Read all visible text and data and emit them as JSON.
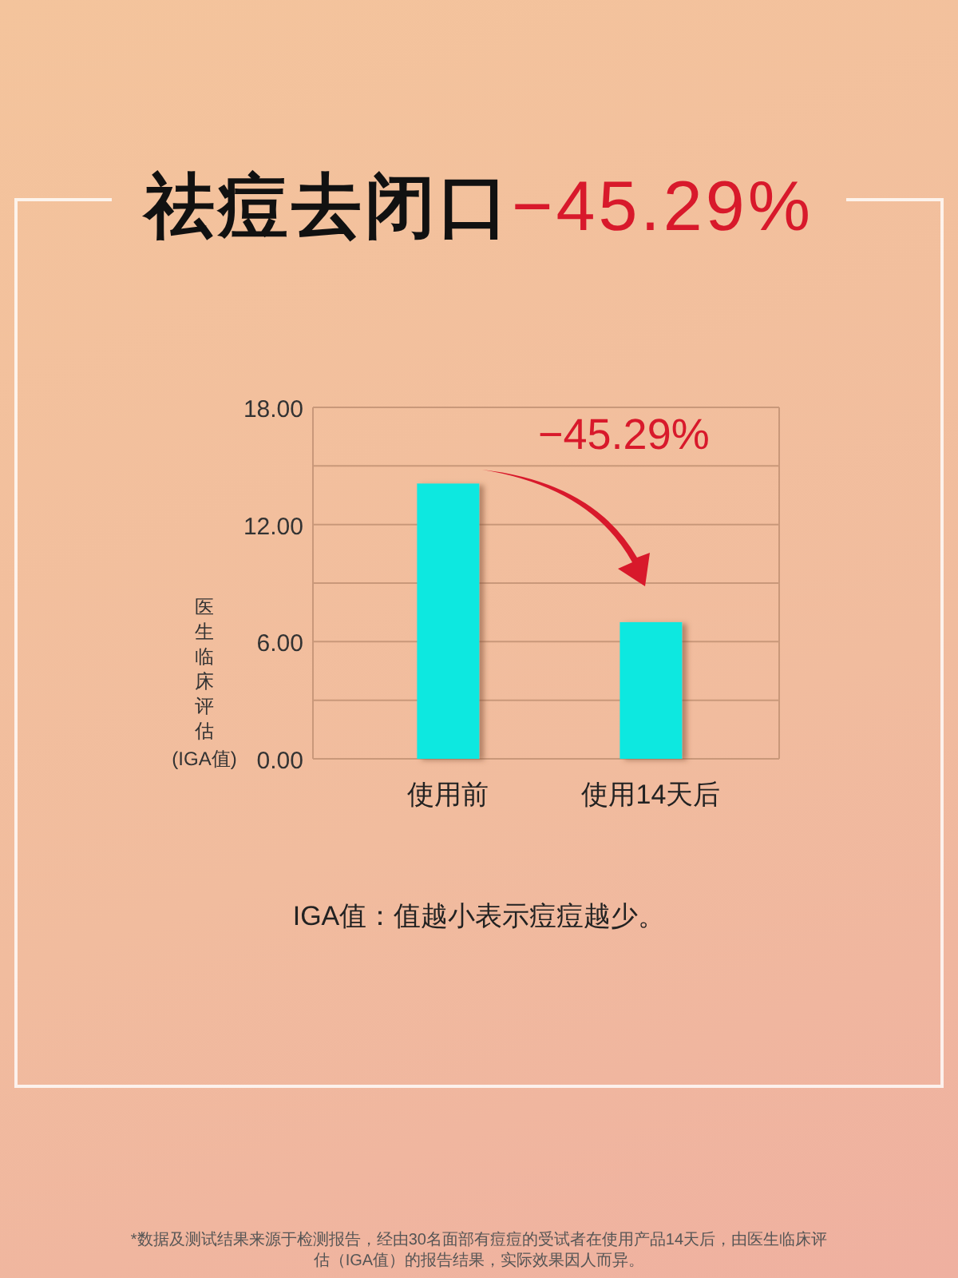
{
  "chart_data": {
    "type": "bar",
    "title": "祛痘去闭口",
    "subtitle": "−45.29%",
    "ylabel": "医生临床评估(IGA值)",
    "categories": [
      "使用前",
      "使用14天后"
    ],
    "values": [
      14.1,
      7.0
    ],
    "color": "#0ce8e0",
    "ylim": [
      0,
      18
    ],
    "yticks": [
      {
        "value": 0,
        "label": "0.00"
      },
      {
        "value": 3,
        "label": null
      },
      {
        "value": 6,
        "label": "6.00"
      },
      {
        "value": 9,
        "label": null
      },
      {
        "value": 12,
        "label": "12.00"
      },
      {
        "value": 15,
        "label": null
      },
      {
        "value": 18,
        "label": "18.00"
      }
    ],
    "grid": "y",
    "annotations": [
      "−45.29%",
      "IGA值：值越小表示痘痘越少。",
      "*数据及测试结果来源于检测报告，经由30名面部有痘痘的受试者在使用产品14天后，由医生临床评估（IGA值）的报告结果，实际效果因人而异。"
    ]
  }
}
